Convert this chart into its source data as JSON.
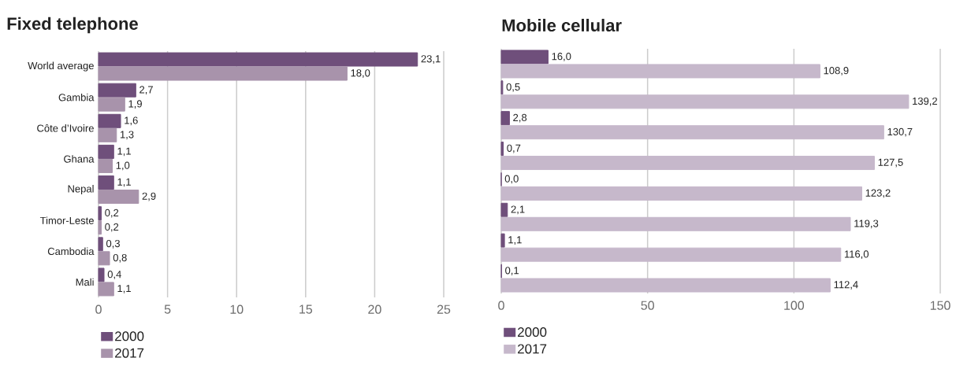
{
  "chart_data": [
    {
      "type": "bar",
      "orientation": "horizontal",
      "title": "Fixed telephone",
      "categories": [
        "World average",
        "Gambia",
        "Côte d’Ivoire",
        "Ghana",
        "Nepal",
        "Timor-Leste",
        "Cambodia",
        "Mali"
      ],
      "series": [
        {
          "name": "2000",
          "color": "#6f4f7b",
          "values": [
            23.1,
            2.7,
            1.6,
            1.1,
            1.1,
            0.2,
            0.3,
            0.4
          ],
          "value_labels": [
            "23,1",
            "2,7",
            "1,6",
            "1,1",
            "1,1",
            "0,2",
            "0,3",
            "0,4"
          ]
        },
        {
          "name": "2017",
          "color": "#a893ab",
          "values": [
            18.0,
            1.9,
            1.3,
            1.0,
            2.9,
            0.2,
            0.8,
            1.1
          ],
          "value_labels": [
            "18,0",
            "1,9",
            "1,3",
            "1,0",
            "2,9",
            "0,2",
            "0,8",
            "1,1"
          ]
        }
      ],
      "xlim": [
        0,
        25
      ],
      "xticks": [
        0,
        5,
        10,
        15,
        20,
        25
      ],
      "grid": "x",
      "legend": "bottom"
    },
    {
      "type": "bar",
      "orientation": "horizontal",
      "title": "Mobile cellular",
      "categories": [
        null,
        null,
        null,
        null,
        null,
        null,
        null,
        null
      ],
      "series": [
        {
          "name": "2000",
          "color": "#6f4f7b",
          "values": [
            16.0,
            0.5,
            2.8,
            0.7,
            0.0,
            2.1,
            1.1,
            0.1
          ],
          "value_labels": [
            "16,0",
            "0,5",
            "2,8",
            "0,7",
            "0,0",
            "2,1",
            "1,1",
            "0,1"
          ]
        },
        {
          "name": "2017",
          "color": "#c6b8cb",
          "values": [
            108.9,
            139.2,
            130.7,
            127.5,
            123.2,
            119.3,
            116.0,
            112.4
          ],
          "value_labels": [
            "108,9",
            "139,2",
            "130,7",
            "127,5",
            "123,2",
            "119,3",
            "116,0",
            "112,4"
          ]
        }
      ],
      "xlim": [
        0,
        150
      ],
      "xticks": [
        0,
        50,
        100,
        150
      ],
      "grid": "x",
      "legend": "bottom",
      "tick_labels": "x"
    }
  ]
}
